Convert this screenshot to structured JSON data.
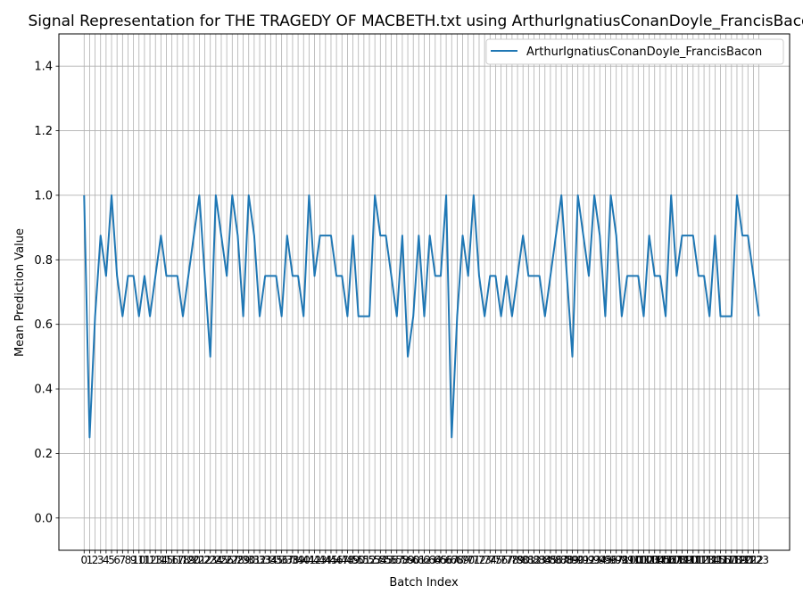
{
  "chart_data": {
    "type": "line",
    "title": "Signal Representation for THE TRAGEDY OF MACBETH.txt using ArthurIgnatiusConanDoyle_FrancisBaco",
    "xlabel": "Batch Index",
    "ylabel": "Mean Prediction Value",
    "xlim": [
      -4.6,
      128.6
    ],
    "ylim": [
      -0.1,
      1.5
    ],
    "y_ticks": [
      0.0,
      0.2,
      0.4,
      0.6,
      0.8,
      1.0,
      1.2,
      1.4
    ],
    "x_ticks": [
      0,
      1,
      2,
      3,
      4,
      5,
      6,
      7,
      8,
      9,
      10,
      11,
      12,
      13,
      14,
      15,
      16,
      17,
      18,
      19,
      20,
      21,
      22,
      23,
      24,
      25,
      26,
      27,
      28,
      29,
      30,
      31,
      32,
      33,
      34,
      35,
      36,
      37,
      38,
      39,
      40,
      41,
      42,
      43,
      44,
      45,
      46,
      47,
      48,
      49,
      50,
      51,
      52,
      53,
      54,
      55,
      56,
      57,
      58,
      59,
      60,
      61,
      62,
      63,
      64,
      65,
      66,
      67,
      68,
      69,
      70,
      71,
      72,
      73,
      74,
      75,
      76,
      77,
      78,
      79,
      80,
      81,
      82,
      83,
      84,
      85,
      86,
      87,
      88,
      89,
      90,
      91,
      92,
      93,
      94,
      95,
      96,
      97,
      98,
      99,
      100,
      101,
      102,
      103,
      104,
      105,
      106,
      107,
      108,
      109,
      110,
      111,
      112,
      113,
      114,
      115,
      116,
      117,
      118,
      119,
      120,
      121,
      122,
      123
    ],
    "grid": true,
    "legend_position": "upper-right",
    "series": [
      {
        "name": "ArthurIgnatiusConanDoyle_FrancisBacon",
        "color": "#1f77b4",
        "x": [
          0,
          1,
          2,
          3,
          4,
          5,
          6,
          7,
          8,
          9,
          10,
          11,
          12,
          13,
          14,
          15,
          16,
          17,
          18,
          19,
          20,
          21,
          22,
          23,
          24,
          25,
          26,
          27,
          28,
          29,
          30,
          31,
          32,
          33,
          34,
          35,
          36,
          37,
          38,
          39,
          40,
          41,
          42,
          43,
          44,
          45,
          46,
          47,
          48,
          49,
          50,
          51,
          52,
          53,
          54,
          55,
          56,
          57,
          58,
          59,
          60,
          61,
          62,
          63,
          64,
          65,
          66,
          67,
          68,
          69,
          70,
          71,
          72,
          73,
          74,
          75,
          76,
          77,
          78,
          79,
          80,
          81,
          82,
          83,
          84,
          85,
          86,
          87,
          88,
          89,
          90,
          91,
          92,
          93,
          94,
          95,
          96,
          97,
          98,
          99,
          100,
          101,
          102,
          103,
          104,
          105,
          106,
          107,
          108,
          109,
          110,
          111,
          112,
          113,
          114,
          115,
          116,
          117,
          118,
          119,
          120,
          121,
          122,
          123
        ],
        "values": [
          1.0,
          0.25,
          0.625,
          0.875,
          0.75,
          1.0,
          0.75,
          0.625,
          0.75,
          0.75,
          0.625,
          0.75,
          0.625,
          0.75,
          0.875,
          0.75,
          0.75,
          0.75,
          0.625,
          0.75,
          0.875,
          1.0,
          0.75,
          0.5,
          1.0,
          0.875,
          0.75,
          1.0,
          0.875,
          0.625,
          1.0,
          0.875,
          0.625,
          0.75,
          0.75,
          0.75,
          0.625,
          0.875,
          0.75,
          0.75,
          0.625,
          1.0,
          0.75,
          0.875,
          0.875,
          0.875,
          0.75,
          0.75,
          0.625,
          0.875,
          0.625,
          0.625,
          0.625,
          1.0,
          0.875,
          0.875,
          0.75,
          0.625,
          0.875,
          0.5,
          0.625,
          0.875,
          0.625,
          0.875,
          0.75,
          0.75,
          1.0,
          0.25,
          0.625,
          0.875,
          0.75,
          1.0,
          0.75,
          0.625,
          0.75,
          0.75,
          0.625,
          0.75,
          0.625,
          0.75,
          0.875,
          0.75,
          0.75,
          0.75,
          0.625,
          0.75,
          0.875,
          1.0,
          0.75,
          0.5,
          1.0,
          0.875,
          0.75,
          1.0,
          0.875,
          0.625,
          1.0,
          0.875,
          0.625,
          0.75,
          0.75,
          0.75,
          0.625,
          0.875,
          0.75,
          0.75,
          0.625,
          1.0,
          0.75,
          0.875,
          0.875,
          0.875,
          0.75,
          0.75,
          0.625,
          0.875,
          0.625,
          0.625,
          0.625,
          1.0,
          0.875,
          0.875,
          0.75,
          0.625
        ]
      }
    ]
  }
}
